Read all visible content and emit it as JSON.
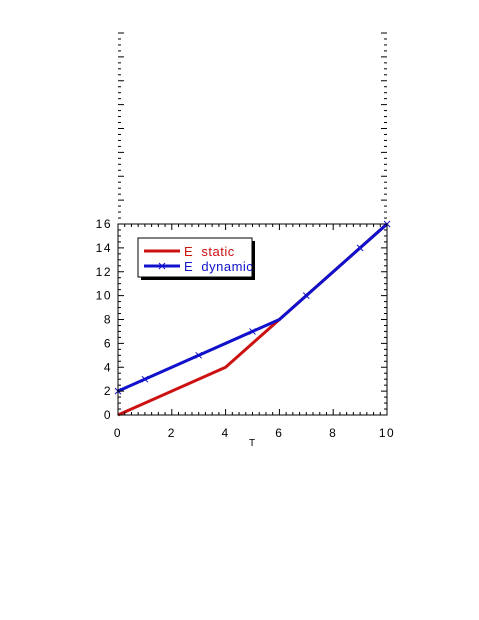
{
  "chart_data": {
    "type": "line",
    "xlabel": "T",
    "ylabel": "",
    "xlim": [
      0,
      10
    ],
    "ylim": [
      0,
      16
    ],
    "xticks": [
      0,
      2,
      4,
      6,
      8,
      10
    ],
    "yticks": [
      0,
      2,
      4,
      6,
      8,
      10,
      12,
      14,
      16
    ],
    "grid": false,
    "legend": {
      "placement": "top-left",
      "entries": [
        "E  static",
        "E  dynamic"
      ]
    },
    "series": [
      {
        "name": "E  static",
        "color": "#cc1111",
        "marker": "none",
        "x": [
          0,
          4,
          6,
          10
        ],
        "y": [
          0,
          4,
          8,
          16
        ]
      },
      {
        "name": "E  dynamic",
        "color": "#1111cc",
        "marker": "x",
        "x": [
          0,
          6,
          10
        ],
        "y": [
          2,
          8,
          16
        ],
        "marker_x": [
          0,
          1,
          3,
          5,
          7,
          9,
          10
        ],
        "marker_y": [
          2,
          3,
          5,
          7,
          10,
          14,
          16
        ]
      }
    ]
  }
}
